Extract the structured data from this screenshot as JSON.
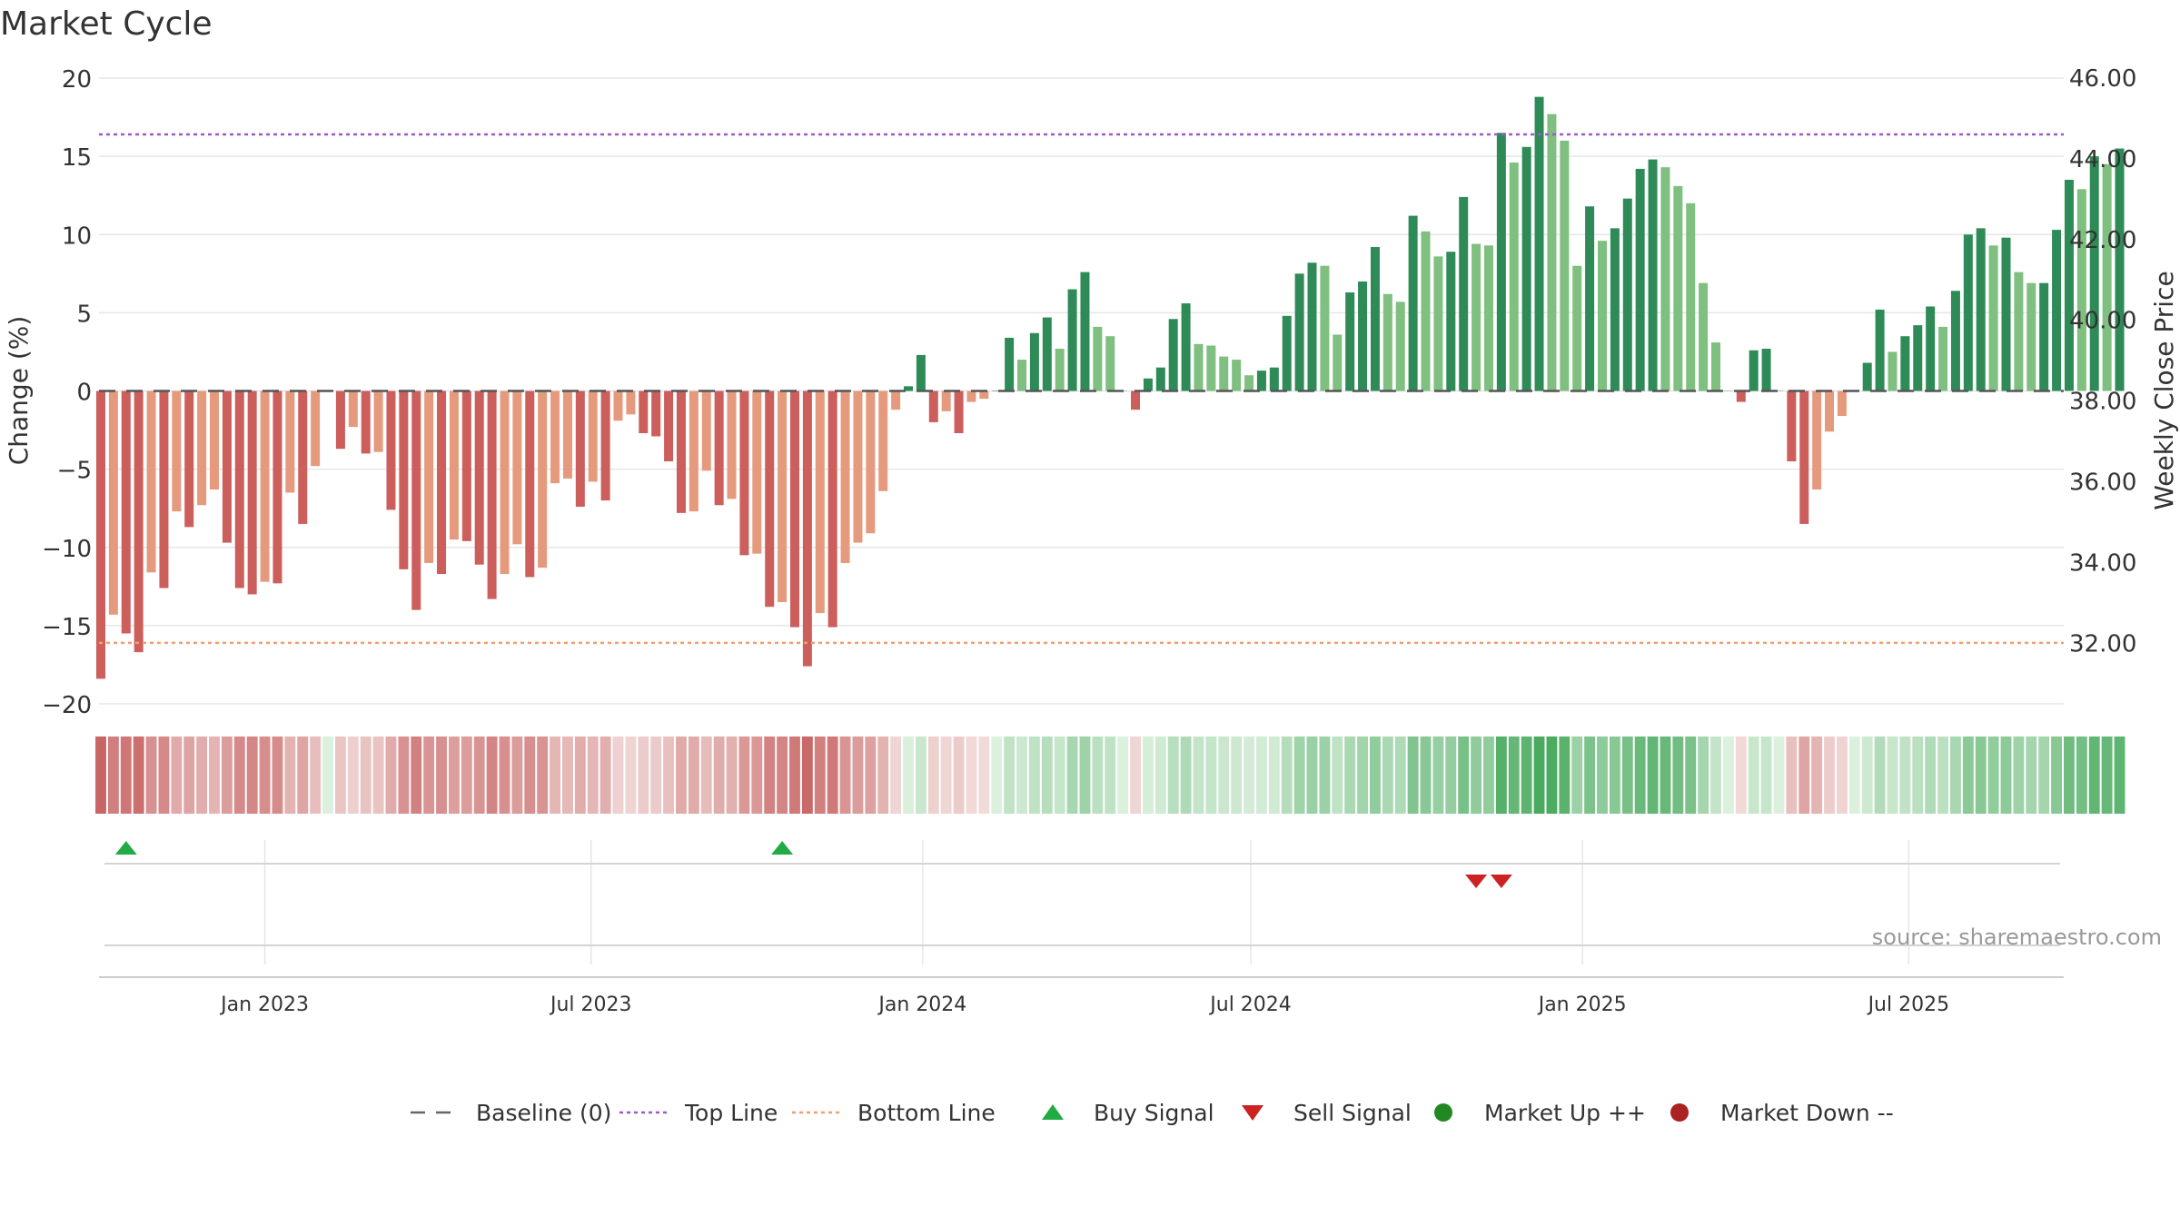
{
  "title": "Market Cycle",
  "source": "source: sharemaestro.com",
  "chart_data": {
    "type": "bar",
    "ylabel_left": "Change (%)",
    "ylabel_right": "Weekly Close Price",
    "ylim_left": [
      -20,
      20
    ],
    "yticks_left": [
      20,
      15,
      10,
      5,
      0,
      -5,
      -10,
      -15,
      -20
    ],
    "ytick_labels_left": [
      "20",
      "15",
      "10",
      "5",
      "0",
      "−5",
      "−10",
      "−15",
      "−20"
    ],
    "ylim_right": [
      30.5,
      46.0
    ],
    "yticks_right": [
      46.0,
      44.0,
      42.0,
      40.0,
      38.0,
      36.0,
      34.0,
      32.0
    ],
    "ytick_labels_right": [
      "46.00",
      "44.00",
      "42.00",
      "40.00",
      "38.00",
      "36.00",
      "34.00",
      "32.00"
    ],
    "x_start": "2022-10-01",
    "x_end": "2025-09-25",
    "bar_start": "2022-10-02",
    "bar_step_days": 7,
    "x_tick_dates": [
      "2023-01-01",
      "2023-07-01",
      "2024-01-01",
      "2024-07-01",
      "2025-01-01",
      "2025-07-01"
    ],
    "x_tick_labels": [
      "Jan 2023",
      "Jul 2023",
      "Jan 2024",
      "Jul 2024",
      "Jan 2025",
      "Jul 2025"
    ],
    "top_line": 16.4,
    "bottom_line": -16.1,
    "baseline": 0,
    "values": [
      -18.4,
      -14.3,
      -15.5,
      -16.7,
      -11.6,
      -12.6,
      -7.7,
      -8.7,
      -7.3,
      -6.3,
      -9.7,
      -12.6,
      -13.0,
      -12.2,
      -12.3,
      -6.5,
      -8.5,
      -4.8,
      0,
      -3.7,
      -2.3,
      -4.0,
      -3.9,
      -7.6,
      -11.4,
      -14.0,
      -11.0,
      -11.7,
      -9.5,
      -9.6,
      -11.1,
      -13.3,
      -11.7,
      -9.8,
      -11.9,
      -11.3,
      -5.9,
      -5.6,
      -7.4,
      -5.8,
      -7.0,
      -1.9,
      -1.5,
      -2.7,
      -2.9,
      -4.5,
      -7.8,
      -7.7,
      -5.1,
      -7.3,
      -6.9,
      -10.5,
      -10.4,
      -13.8,
      -13.5,
      -15.1,
      -17.6,
      -14.2,
      -15.1,
      -11.0,
      -9.7,
      -9.1,
      -6.4,
      -1.2,
      0.3,
      2.3,
      -2.0,
      -1.3,
      -2.7,
      -0.7,
      -0.5,
      0,
      3.4,
      2.0,
      3.7,
      4.7,
      2.7,
      6.5,
      7.6,
      4.1,
      3.5,
      0,
      -1.2,
      0.8,
      1.5,
      4.6,
      5.6,
      3.0,
      2.9,
      2.2,
      2.0,
      1.0,
      1.3,
      1.5,
      4.8,
      7.5,
      8.2,
      8.0,
      3.6,
      6.3,
      7.0,
      9.2,
      6.2,
      5.7,
      11.2,
      10.2,
      8.6,
      8.9,
      12.4,
      9.4,
      9.3,
      16.5,
      14.6,
      15.6,
      18.8,
      17.7,
      16.0,
      8.0,
      11.8,
      9.6,
      10.4,
      12.3,
      14.2,
      14.8,
      14.3,
      13.1,
      12.0,
      6.9,
      3.1,
      0,
      -0.7,
      2.6,
      2.7,
      0,
      -4.5,
      -8.5,
      -6.3,
      -2.6,
      -1.6,
      0,
      1.8,
      5.2,
      2.5,
      3.5,
      4.2,
      5.4,
      4.1,
      6.4,
      10.0,
      10.4,
      9.3,
      9.8,
      7.6,
      6.9,
      6.9,
      10.3,
      13.5,
      12.9,
      15.0,
      14.5,
      15.5
    ],
    "colors": {
      "neg_dark": "#cc5e5c",
      "neg_light": "#e59a7d",
      "pos_dark": "#2e8b57",
      "pos_light": "#7fbf7f",
      "top_line": "#9b59d0",
      "bottom_line": "#f0a070",
      "baseline": "#555555",
      "buy": "#22aa44",
      "sell": "#cc2222",
      "grid": "#e6e6e6"
    },
    "buy_signal_dates": [
      "2022-10-16",
      "2023-10-15"
    ],
    "sell_signal_dates": [
      "2024-11-03",
      "2024-11-17"
    ],
    "legend": [
      {
        "label": "Baseline (0)",
        "kind": "dash",
        "color": "#666666"
      },
      {
        "label": "Top Line",
        "kind": "dot",
        "color": "#9b59d0"
      },
      {
        "label": "Bottom Line",
        "kind": "dot",
        "color": "#f0a070"
      },
      {
        "label": "Buy Signal",
        "kind": "tri-up",
        "color": "#22aa44"
      },
      {
        "label": "Sell Signal",
        "kind": "tri-down",
        "color": "#cc2222"
      },
      {
        "label": "Market Up ++",
        "kind": "circle",
        "color": "#228822"
      },
      {
        "label": "Market Down --",
        "kind": "circle",
        "color": "#aa2222"
      }
    ],
    "legend_position": "bottom",
    "grid": true
  }
}
